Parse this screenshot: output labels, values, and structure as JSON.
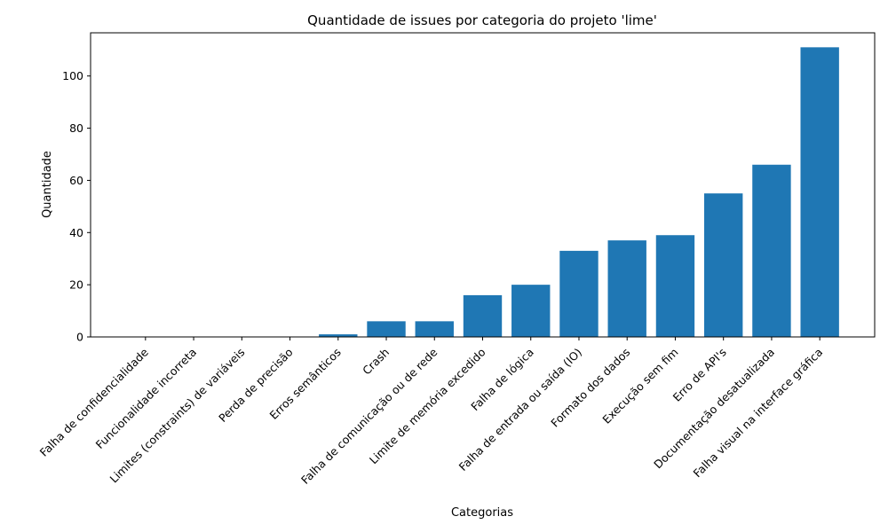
{
  "chart_data": {
    "type": "bar",
    "title": "Quantidade de issues por categoria do projeto 'lime'",
    "xlabel": "Categorias",
    "ylabel": "Quantidade",
    "categories": [
      "Falha de confidencialidade",
      "Funcionalidade incorreta",
      "Limites (constraints) de variáveis",
      "Perda de precisão",
      "Erros semânticos",
      "Crash",
      "Falha de comunicação ou de rede",
      "Limite de memória excedido",
      "Falha de lógica",
      "Falha de entrada ou saída (IO)",
      "Formato dos dados",
      "Execução sem fim",
      "Erro de API's",
      "Documentação desatualizada",
      "Falha visual na interface gráfica"
    ],
    "values": [
      0,
      0,
      0,
      0,
      1,
      6,
      6,
      16,
      20,
      33,
      37,
      39,
      55,
      66,
      111
    ],
    "ylim": [
      0,
      116.55
    ],
    "yticks": [
      0,
      20,
      40,
      60,
      80,
      100
    ],
    "grid": false,
    "bar_color": "#1f77b4"
  }
}
